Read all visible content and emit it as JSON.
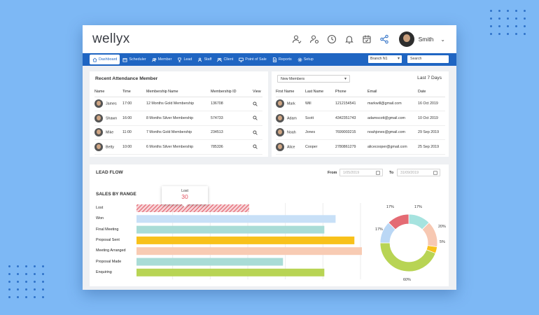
{
  "app": {
    "logo": "wellyx",
    "user_name": "Smith",
    "top_icons": [
      "add-user-icon",
      "manage-users-icon",
      "clock-icon",
      "bell-icon",
      "calendar-icon",
      "share-icon"
    ]
  },
  "nav": {
    "items": [
      {
        "label": "Dashboard",
        "icon": "home-icon",
        "active": true
      },
      {
        "label": "Scheduler",
        "icon": "calendar-icon"
      },
      {
        "label": "Member",
        "icon": "members-icon"
      },
      {
        "label": "Lead",
        "icon": "trophy-icon"
      },
      {
        "label": "Staff",
        "icon": "staff-icon"
      },
      {
        "label": "Client",
        "icon": "clients-icon"
      },
      {
        "label": "Point of Sale",
        "icon": "monitor-icon"
      },
      {
        "label": "Reports",
        "icon": "report-icon"
      },
      {
        "label": "Setup",
        "icon": "gear-icon"
      }
    ],
    "branch": "Branch N1",
    "search_placeholder": "Search"
  },
  "attendance": {
    "title": "Recent Attendance Member",
    "columns": [
      "Name",
      "Time",
      "Membership Name",
      "Membership ID",
      "View"
    ],
    "rows": [
      {
        "name": "James",
        "time": "17:00",
        "membership": "12 Months Gold Membership",
        "id": "136708"
      },
      {
        "name": "Shawn",
        "time": "16:00",
        "membership": "8 Months Silver Membership",
        "id": "574733"
      },
      {
        "name": "Mike",
        "time": "11:00",
        "membership": "7 Months Gold Membership",
        "id": "234513"
      },
      {
        "name": "Betty",
        "time": "10:00",
        "membership": "6 Months Silver Membership",
        "id": "785336"
      }
    ]
  },
  "members": {
    "filter": "New Members",
    "period": "Last 7 Days",
    "columns": [
      "First Name",
      "Last Name",
      "Phone",
      "Email",
      "Date"
    ],
    "rows": [
      {
        "first": "Mark",
        "last": "Will",
        "phone": "1212154541",
        "email": "markwill@gmail.com",
        "date": "16 Oct 2019"
      },
      {
        "first": "Adam",
        "last": "Scott",
        "phone": "4342351743",
        "email": "adamscott@gmail.com",
        "date": "10 Oct 2019"
      },
      {
        "first": "Noah",
        "last": "Jones",
        "phone": "7699003215",
        "email": "noahjones@gmail.com",
        "date": "29 Sep 2019"
      },
      {
        "first": "Alice",
        "last": "Cooper",
        "phone": "2780861279",
        "email": "alicecooper@gmail.com",
        "date": "25 Sep 2019"
      }
    ]
  },
  "lead_flow": {
    "title": "LEAD FLOW",
    "from_label": "From",
    "from_date": "1/05/2019",
    "to_label": "To",
    "to_date": "31/09/2019",
    "tooltip": {
      "label": "Lost",
      "value": "30"
    }
  },
  "chart_data": [
    {
      "type": "bar",
      "orientation": "horizontal",
      "title": "SALES BY RANGE",
      "categories": [
        "Lost",
        "Won",
        "Final Meeting",
        "Proposal Sent",
        "Meeting Arranged",
        "Proposal Made",
        "Enquiring"
      ],
      "values": [
        30,
        53,
        50,
        58,
        60,
        39,
        50
      ],
      "xlim": [
        0,
        60
      ],
      "colors": [
        "#e25563",
        "#c8e0f7",
        "#a9dcd6",
        "#f8c11a",
        "#f8cbb3",
        "#a9dcd6",
        "#b8d454"
      ],
      "grid": true
    },
    {
      "type": "pie",
      "style": "donut",
      "labels": [
        "17%",
        "20%",
        "5%",
        "60%",
        "17%",
        "17%"
      ],
      "values": [
        17,
        20,
        5,
        60,
        17,
        17
      ],
      "colors": [
        "#a6e3df",
        "#f7c8b2",
        "#f8c11a",
        "#b8d454",
        "#bad7f5",
        "#e46b74"
      ]
    }
  ]
}
